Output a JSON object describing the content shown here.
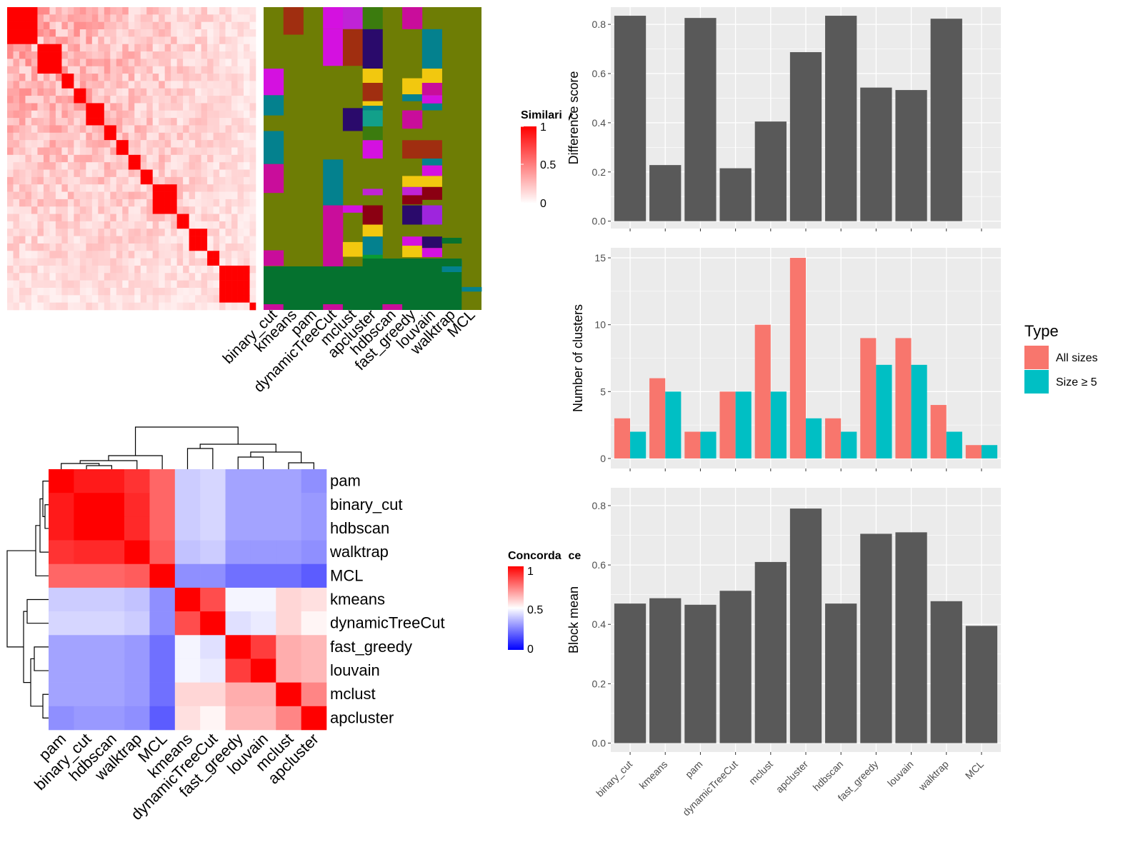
{
  "methods": [
    "binary_cut",
    "kmeans",
    "pam",
    "dynamicTreeCut",
    "mclust",
    "apcluster",
    "hdbscan",
    "fast_greedy",
    "louvain",
    "walktrap",
    "MCL"
  ],
  "similarity_legend": {
    "title": "Similarity",
    "ticks": [
      "1",
      "0.5",
      "0"
    ]
  },
  "concordance_legend": {
    "title": "Concordance",
    "ticks": [
      "1",
      "0.5",
      "0"
    ]
  },
  "palette": {
    "bar": "#595959",
    "panel_bg": "#ebebeb",
    "all_sizes": "#f8766d",
    "size_ge5": "#00bfc4",
    "sim_low": "#ffffff",
    "sim_high": "#ff0000",
    "conc_low": "#0000ff",
    "conc_mid": "#ffffff",
    "conc_high": "#ff0000"
  },
  "chart_data": [
    {
      "type": "heatmap",
      "name": "similarity",
      "description_values": "term similarity matrix, rows and columns in same order",
      "block_sizes": [
        5,
        4,
        2,
        2,
        3,
        2,
        2,
        2,
        2,
        4,
        2,
        3,
        2,
        5,
        1
      ],
      "within_block_similarity": 1.0,
      "background_similarity_range": [
        0.0,
        0.55
      ],
      "legend_range": [
        0,
        1
      ]
    },
    {
      "type": "heatmap",
      "name": "cluster-assignments",
      "columns": [
        "binary_cut",
        "kmeans",
        "pam",
        "dynamicTreeCut",
        "mclust",
        "apcluster",
        "hdbscan",
        "fast_greedy",
        "louvain",
        "walktrap",
        "MCL"
      ]
    },
    {
      "type": "heatmap",
      "name": "concordance",
      "rows": [
        "pam",
        "binary_cut",
        "hdbscan",
        "walktrap",
        "MCL",
        "kmeans",
        "dynamicTreeCut",
        "fast_greedy",
        "louvain",
        "mclust",
        "apcluster"
      ],
      "columns": [
        "pam",
        "binary_cut",
        "hdbscan",
        "walktrap",
        "MCL",
        "kmeans",
        "dynamicTreeCut",
        "fast_greedy",
        "louvain",
        "mclust",
        "apcluster"
      ],
      "values": [
        [
          1.0,
          0.95,
          0.95,
          0.9,
          0.8,
          0.4,
          0.42,
          0.32,
          0.32,
          0.32,
          0.28
        ],
        [
          0.95,
          1.0,
          1.0,
          0.92,
          0.8,
          0.4,
          0.42,
          0.32,
          0.32,
          0.32,
          0.3
        ],
        [
          0.95,
          1.0,
          1.0,
          0.92,
          0.8,
          0.4,
          0.42,
          0.32,
          0.32,
          0.32,
          0.3
        ],
        [
          0.9,
          0.92,
          0.92,
          1.0,
          0.82,
          0.38,
          0.4,
          0.3,
          0.3,
          0.3,
          0.28
        ],
        [
          0.8,
          0.8,
          0.8,
          0.82,
          1.0,
          0.28,
          0.28,
          0.22,
          0.22,
          0.22,
          0.18
        ],
        [
          0.4,
          0.4,
          0.4,
          0.38,
          0.28,
          1.0,
          0.85,
          0.48,
          0.48,
          0.58,
          0.56
        ],
        [
          0.42,
          0.42,
          0.42,
          0.4,
          0.28,
          0.85,
          1.0,
          0.44,
          0.46,
          0.58,
          0.52
        ],
        [
          0.32,
          0.32,
          0.32,
          0.3,
          0.22,
          0.48,
          0.44,
          1.0,
          0.88,
          0.66,
          0.64
        ],
        [
          0.32,
          0.32,
          0.32,
          0.3,
          0.22,
          0.48,
          0.46,
          0.88,
          1.0,
          0.66,
          0.64
        ],
        [
          0.32,
          0.32,
          0.32,
          0.3,
          0.22,
          0.58,
          0.58,
          0.66,
          0.66,
          1.0,
          0.74
        ],
        [
          0.28,
          0.3,
          0.3,
          0.28,
          0.18,
          0.56,
          0.52,
          0.64,
          0.64,
          0.74,
          1.0
        ]
      ]
    },
    {
      "type": "bar",
      "name": "difference-score",
      "categories": [
        "binary_cut",
        "kmeans",
        "pam",
        "dynamicTreeCut",
        "mclust",
        "apcluster",
        "hdbscan",
        "fast_greedy",
        "louvain",
        "walktrap",
        "MCL"
      ],
      "values": [
        0.835,
        0.228,
        0.826,
        0.215,
        0.405,
        0.687,
        0.835,
        0.543,
        0.533,
        0.823,
        0
      ],
      "ylabel": "Difference score",
      "ylim": [
        -0.03,
        0.87
      ],
      "yticks": [
        0.0,
        0.2,
        0.4,
        0.6,
        0.8
      ],
      "ytick_labels": [
        "0.0",
        "0.2",
        "0.4",
        "0.6",
        "0.8"
      ],
      "grid": true
    },
    {
      "type": "bar",
      "name": "number-of-clusters",
      "categories": [
        "binary_cut",
        "kmeans",
        "pam",
        "dynamicTreeCut",
        "mclust",
        "apcluster",
        "hdbscan",
        "fast_greedy",
        "louvain",
        "walktrap",
        "MCL"
      ],
      "series": [
        {
          "name": "All sizes",
          "values": [
            3,
            6,
            2,
            5,
            10,
            15,
            3,
            9,
            9,
            4,
            1
          ]
        },
        {
          "name": "Size ≥ 5",
          "values": [
            2,
            5,
            2,
            5,
            5,
            3,
            2,
            7,
            7,
            2,
            1
          ]
        }
      ],
      "ylabel": "Number of clusters",
      "ylim": [
        -0.75,
        15.75
      ],
      "yticks": [
        0,
        5,
        10,
        15
      ],
      "ytick_labels": [
        "0",
        "5",
        "10",
        "15"
      ],
      "legend": {
        "title": "Type",
        "position": "right"
      },
      "grid": true
    },
    {
      "type": "bar",
      "name": "block-mean",
      "categories": [
        "binary_cut",
        "kmeans",
        "pam",
        "dynamicTreeCut",
        "mclust",
        "apcluster",
        "hdbscan",
        "fast_greedy",
        "louvain",
        "walktrap",
        "MCL"
      ],
      "values": [
        0.47,
        0.488,
        0.466,
        0.513,
        0.61,
        0.79,
        0.47,
        0.705,
        0.71,
        0.478,
        0.395
      ],
      "ylabel": "Block mean",
      "ylim": [
        -0.03,
        0.86
      ],
      "yticks": [
        0.0,
        0.2,
        0.4,
        0.6,
        0.8
      ],
      "ytick_labels": [
        "0.0",
        "0.2",
        "0.4",
        "0.6",
        "0.8"
      ],
      "grid": true
    }
  ]
}
